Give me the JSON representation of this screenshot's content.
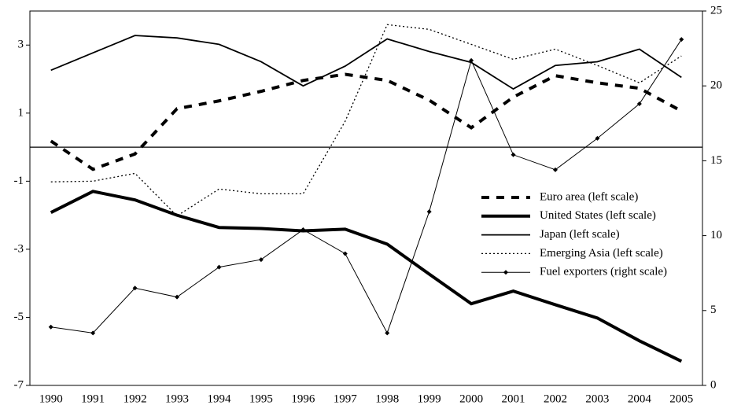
{
  "chart_data": {
    "type": "line",
    "categories": [
      "1990",
      "1991",
      "1992",
      "1993",
      "1994",
      "1995",
      "1996",
      "1997",
      "1998",
      "1999",
      "2000",
      "2001",
      "2002",
      "2003",
      "2004",
      "2005"
    ],
    "ylim": [
      -7,
      4
    ],
    "yticks": [
      -7,
      -5,
      -3,
      -1,
      1,
      3
    ],
    "y2lim": [
      0,
      25
    ],
    "y2ticks": [
      0,
      5,
      10,
      15,
      20,
      25
    ],
    "legend": "center-right",
    "series": [
      {
        "name": "Euro area (left scale)",
        "color": "#000000",
        "style": "dashed",
        "width": 4,
        "values": [
          0.18,
          -0.65,
          -0.2,
          1.13,
          1.36,
          1.64,
          1.96,
          2.14,
          1.96,
          1.38,
          0.57,
          1.47,
          2.1,
          1.89,
          1.73,
          1.06
        ]
      },
      {
        "name": "United States (left scale)",
        "color": "#000000",
        "style": "solid",
        "width": 4,
        "values": [
          -1.92,
          -1.3,
          -1.55,
          -2.0,
          -2.36,
          -2.39,
          -2.46,
          -2.41,
          -2.85,
          -3.73,
          -4.6,
          -4.23,
          -4.63,
          -5.02,
          -5.69,
          -6.29
        ]
      },
      {
        "name": "Japan (left scale)",
        "color": "#000000",
        "style": "solid",
        "width": 1.8,
        "values": [
          2.26,
          2.77,
          3.28,
          3.21,
          3.02,
          2.51,
          1.8,
          2.38,
          3.18,
          2.81,
          2.49,
          1.71,
          2.4,
          2.51,
          2.88,
          2.05
        ]
      },
      {
        "name": "Emerging Asia (left scale)",
        "color": "#000000",
        "style": "dotted",
        "width": 1.3,
        "values": [
          -1.02,
          -1.0,
          -0.77,
          -2.02,
          -1.23,
          -1.37,
          -1.37,
          0.76,
          3.6,
          3.46,
          3.02,
          2.58,
          2.88,
          2.4,
          1.89,
          2.68
        ]
      },
      {
        "name": "Fuel exporters (right scale)",
        "color": "#000000",
        "style": "solid",
        "width": 1,
        "marker": "diamond",
        "axis": "y2",
        "values": [
          3.9,
          3.5,
          6.5,
          5.9,
          7.9,
          8.4,
          10.4,
          8.8,
          3.5,
          11.6,
          21.7,
          15.4,
          14.4,
          16.5,
          18.8,
          23.1
        ]
      }
    ]
  }
}
